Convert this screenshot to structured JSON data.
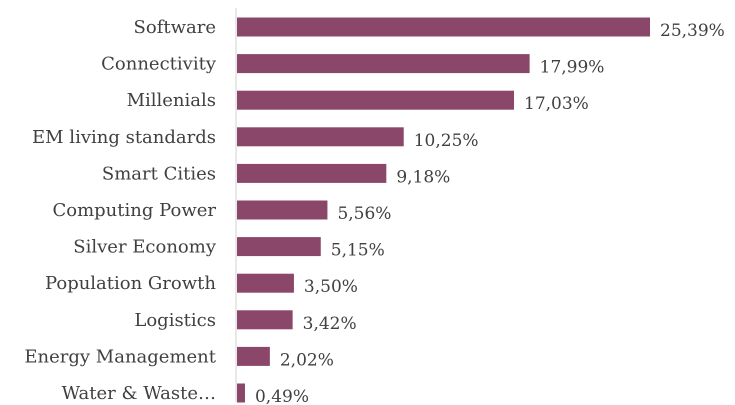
{
  "chart_data": {
    "type": "bar",
    "orientation": "horizontal",
    "categories": [
      "Software",
      "Connectivity",
      "Millenials",
      "EM living standards",
      "Smart Cities",
      "Computing Power",
      "Silver Economy",
      "Population Growth",
      "Logistics",
      "Energy Management",
      "Water & Waste…"
    ],
    "values": [
      25.39,
      17.99,
      17.03,
      10.25,
      9.18,
      5.56,
      5.15,
      3.5,
      3.42,
      2.02,
      0.49
    ],
    "value_labels": [
      "25,39%",
      "17,99%",
      "17,03%",
      "10,25%",
      "9,18%",
      "5,56%",
      "5,15%",
      "3,50%",
      "3,42%",
      "2,02%",
      "0,49%"
    ],
    "unit": "%",
    "xlim": [
      0,
      25.39
    ],
    "grid": false,
    "legend": "none",
    "colors": {
      "bar": "#8b4769",
      "axis": "#d0d0d0",
      "text": "#404040"
    }
  }
}
